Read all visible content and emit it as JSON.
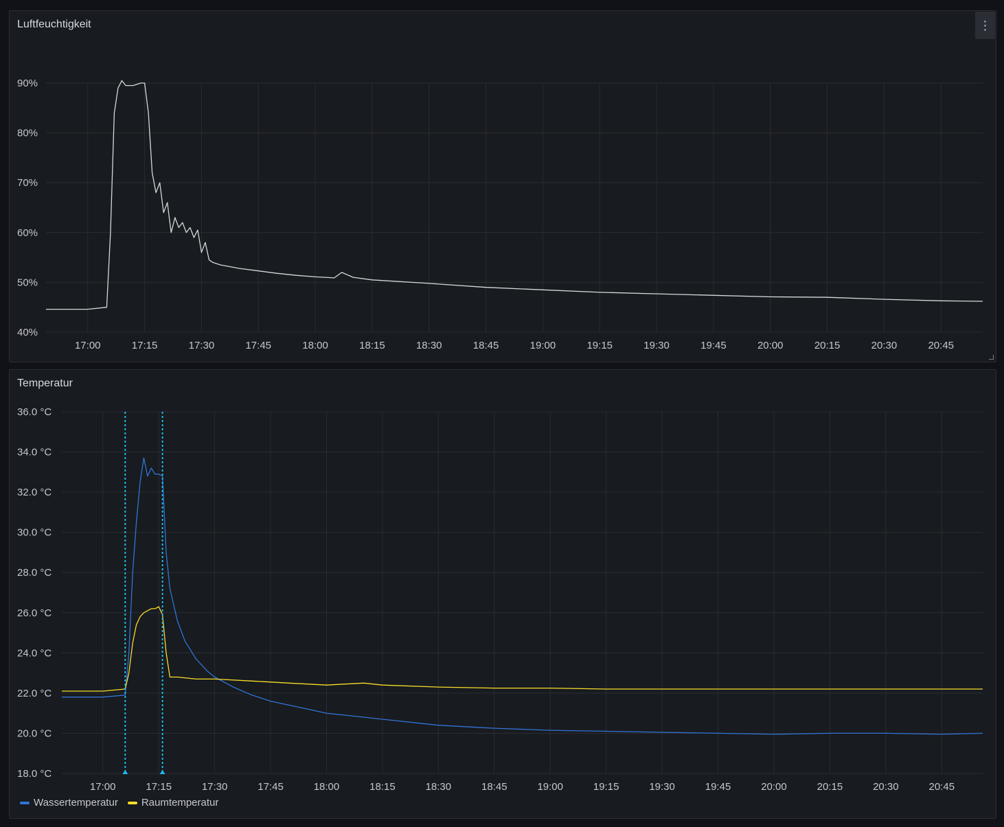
{
  "colors": {
    "humidity_line": "#d8d9dc",
    "wasser": "#3274d9",
    "raum": "#fade2a",
    "annotation": "#1fb9f0",
    "grid": "#2a2c31"
  },
  "panels": {
    "humidity": {
      "title": "Luftfeuchtigkeit",
      "menu_icon": "kebab-menu-icon"
    },
    "temperature": {
      "title": "Temperatur"
    }
  },
  "chart_data": [
    {
      "type": "line",
      "title": "Luftfeuchtigkeit",
      "x_range": [
        "16:49",
        "20:56"
      ],
      "x_ticks": [
        "17:00",
        "17:15",
        "17:30",
        "17:45",
        "18:00",
        "18:15",
        "18:30",
        "18:45",
        "19:00",
        "19:15",
        "19:30",
        "19:45",
        "20:00",
        "20:15",
        "20:30",
        "20:45"
      ],
      "y_ticks": [
        "40%",
        "50%",
        "60%",
        "70%",
        "80%",
        "90%"
      ],
      "ylim": [
        40,
        90
      ],
      "grid": true,
      "series": [
        {
          "x": [
            "16:49",
            "17:00",
            "17:05",
            "17:06",
            "17:07",
            "17:08",
            "17:09",
            "17:10",
            "17:12",
            "17:14",
            "17:15",
            "17:16",
            "17:17",
            "17:18",
            "17:19",
            "17:20",
            "17:21",
            "17:22",
            "17:23",
            "17:24",
            "17:25",
            "17:26",
            "17:27",
            "17:28",
            "17:29",
            "17:30",
            "17:31",
            "17:32",
            "17:33",
            "17:35",
            "17:40",
            "17:45",
            "17:50",
            "17:55",
            "18:00",
            "18:05",
            "18:07",
            "18:10",
            "18:15",
            "18:30",
            "18:45",
            "19:00",
            "19:15",
            "19:30",
            "19:45",
            "20:00",
            "20:15",
            "20:30",
            "20:45",
            "20:56"
          ],
          "values": [
            44.6,
            44.6,
            45,
            60,
            84,
            89,
            90.5,
            89.5,
            89.5,
            90,
            90,
            84,
            72,
            68,
            70,
            64,
            66,
            60,
            63,
            61,
            62,
            60,
            61,
            59,
            60.5,
            56,
            58,
            54.5,
            54,
            53.5,
            52.8,
            52.3,
            51.8,
            51.4,
            51.1,
            50.9,
            52,
            51,
            50.5,
            49.8,
            49,
            48.5,
            48,
            47.7,
            47.4,
            47.1,
            47,
            46.6,
            46.3,
            46.2
          ]
        }
      ]
    },
    {
      "type": "line",
      "title": "Temperatur",
      "x_range": [
        "16:49",
        "20:56"
      ],
      "x_ticks": [
        "17:00",
        "17:15",
        "17:30",
        "17:45",
        "18:00",
        "18:15",
        "18:30",
        "18:45",
        "19:00",
        "19:15",
        "19:30",
        "19:45",
        "20:00",
        "20:15",
        "20:30",
        "20:45"
      ],
      "y_ticks": [
        "18.0 °C",
        "20.0 °C",
        "22.0 °C",
        "24.0 °C",
        "26.0 °C",
        "28.0 °C",
        "30.0 °C",
        "32.0 °C",
        "34.0 °C",
        "36.0 °C"
      ],
      "ylim": [
        18,
        36
      ],
      "grid": true,
      "legend": "bottom-left",
      "annotations": [
        "17:06",
        "17:16"
      ],
      "series": [
        {
          "name": "Wassertemperatur",
          "x": [
            "16:49",
            "17:00",
            "17:06",
            "17:07",
            "17:08",
            "17:09",
            "17:10",
            "17:11",
            "17:12",
            "17:13",
            "17:14",
            "17:15",
            "17:16",
            "17:17",
            "17:18",
            "17:20",
            "17:22",
            "17:25",
            "17:28",
            "17:30",
            "17:35",
            "17:40",
            "17:45",
            "17:50",
            "17:55",
            "18:00",
            "18:05",
            "18:10",
            "18:15",
            "18:20",
            "18:25",
            "18:30",
            "18:35",
            "18:40",
            "18:45",
            "19:00",
            "19:15",
            "19:30",
            "19:45",
            "20:00",
            "20:15",
            "20:30",
            "20:45",
            "20:56"
          ],
          "values": [
            21.8,
            21.8,
            21.9,
            24,
            28,
            30.5,
            32.5,
            33.7,
            32.8,
            33.2,
            32.9,
            32.9,
            32.8,
            29,
            27.2,
            25.6,
            24.6,
            23.7,
            23.1,
            22.8,
            22.3,
            21.9,
            21.6,
            21.4,
            21.2,
            21,
            20.9,
            20.8,
            20.7,
            20.6,
            20.5,
            20.4,
            20.35,
            20.3,
            20.25,
            20.15,
            20.1,
            20.05,
            20,
            19.95,
            20,
            20,
            19.95,
            20
          ]
        },
        {
          "name": "Raumtemperatur",
          "x": [
            "16:49",
            "17:00",
            "17:06",
            "17:07",
            "17:08",
            "17:09",
            "17:10",
            "17:11",
            "17:12",
            "17:13",
            "17:14",
            "17:15",
            "17:16",
            "17:17",
            "17:18",
            "17:20",
            "17:25",
            "17:30",
            "17:40",
            "17:50",
            "18:00",
            "18:05",
            "18:10",
            "18:15",
            "18:30",
            "18:45",
            "19:00",
            "19:15",
            "19:30",
            "19:45",
            "20:00",
            "20:15",
            "20:30",
            "20:45",
            "20:56"
          ],
          "values": [
            22.1,
            22.1,
            22.2,
            23,
            24.5,
            25.4,
            25.8,
            26,
            26.1,
            26.2,
            26.2,
            26.3,
            25.9,
            24,
            22.8,
            22.8,
            22.7,
            22.7,
            22.6,
            22.5,
            22.4,
            22.45,
            22.5,
            22.4,
            22.3,
            22.25,
            22.25,
            22.2,
            22.2,
            22.2,
            22.2,
            22.2,
            22.2,
            22.2,
            22.2
          ]
        }
      ]
    }
  ]
}
